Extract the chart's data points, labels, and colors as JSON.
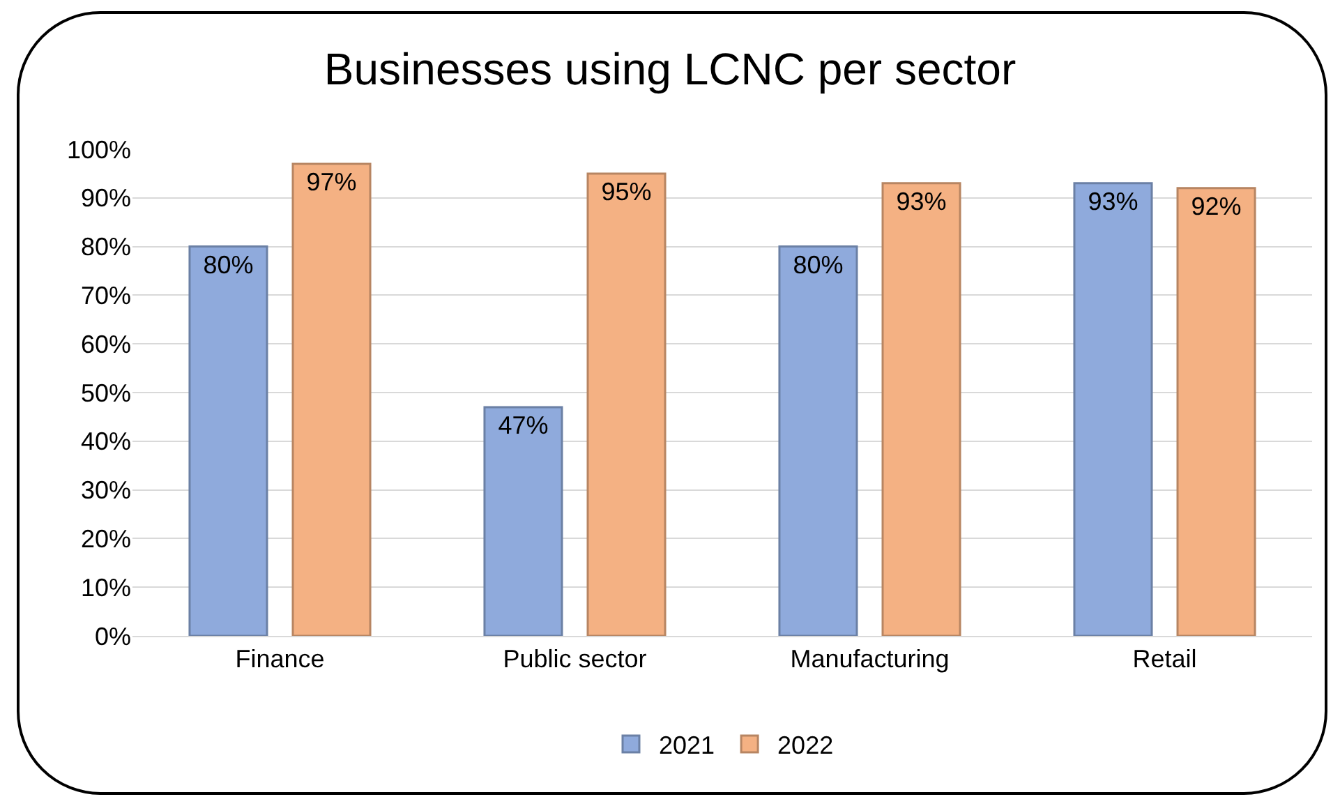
{
  "chart_data": {
    "type": "bar",
    "title": "Businesses using LCNC per sector",
    "categories": [
      "Finance",
      "Public sector",
      "Manufacturing",
      "Retail"
    ],
    "series": [
      {
        "name": "2021",
        "color": "#8faadc",
        "values": [
          80,
          47,
          80,
          93
        ],
        "value_labels": [
          "80%",
          "47%",
          "80%",
          "93%"
        ]
      },
      {
        "name": "2022",
        "color": "#f4b183",
        "values": [
          97,
          95,
          93,
          92
        ],
        "value_labels": [
          "97%",
          "95%",
          "93%",
          "92%"
        ]
      }
    ],
    "ylim": [
      0,
      100
    ],
    "yticks": [
      {
        "value": 0,
        "label": "0%"
      },
      {
        "value": 10,
        "label": "10%"
      },
      {
        "value": 20,
        "label": "20%"
      },
      {
        "value": 30,
        "label": "30%"
      },
      {
        "value": 40,
        "label": "40%"
      },
      {
        "value": 50,
        "label": "50%"
      },
      {
        "value": 60,
        "label": "60%"
      },
      {
        "value": 70,
        "label": "70%"
      },
      {
        "value": 80,
        "label": "80%"
      },
      {
        "value": 90,
        "label": "90%"
      },
      {
        "value": 100,
        "label": "100%"
      }
    ],
    "grid": "y",
    "legend": "bottom"
  }
}
